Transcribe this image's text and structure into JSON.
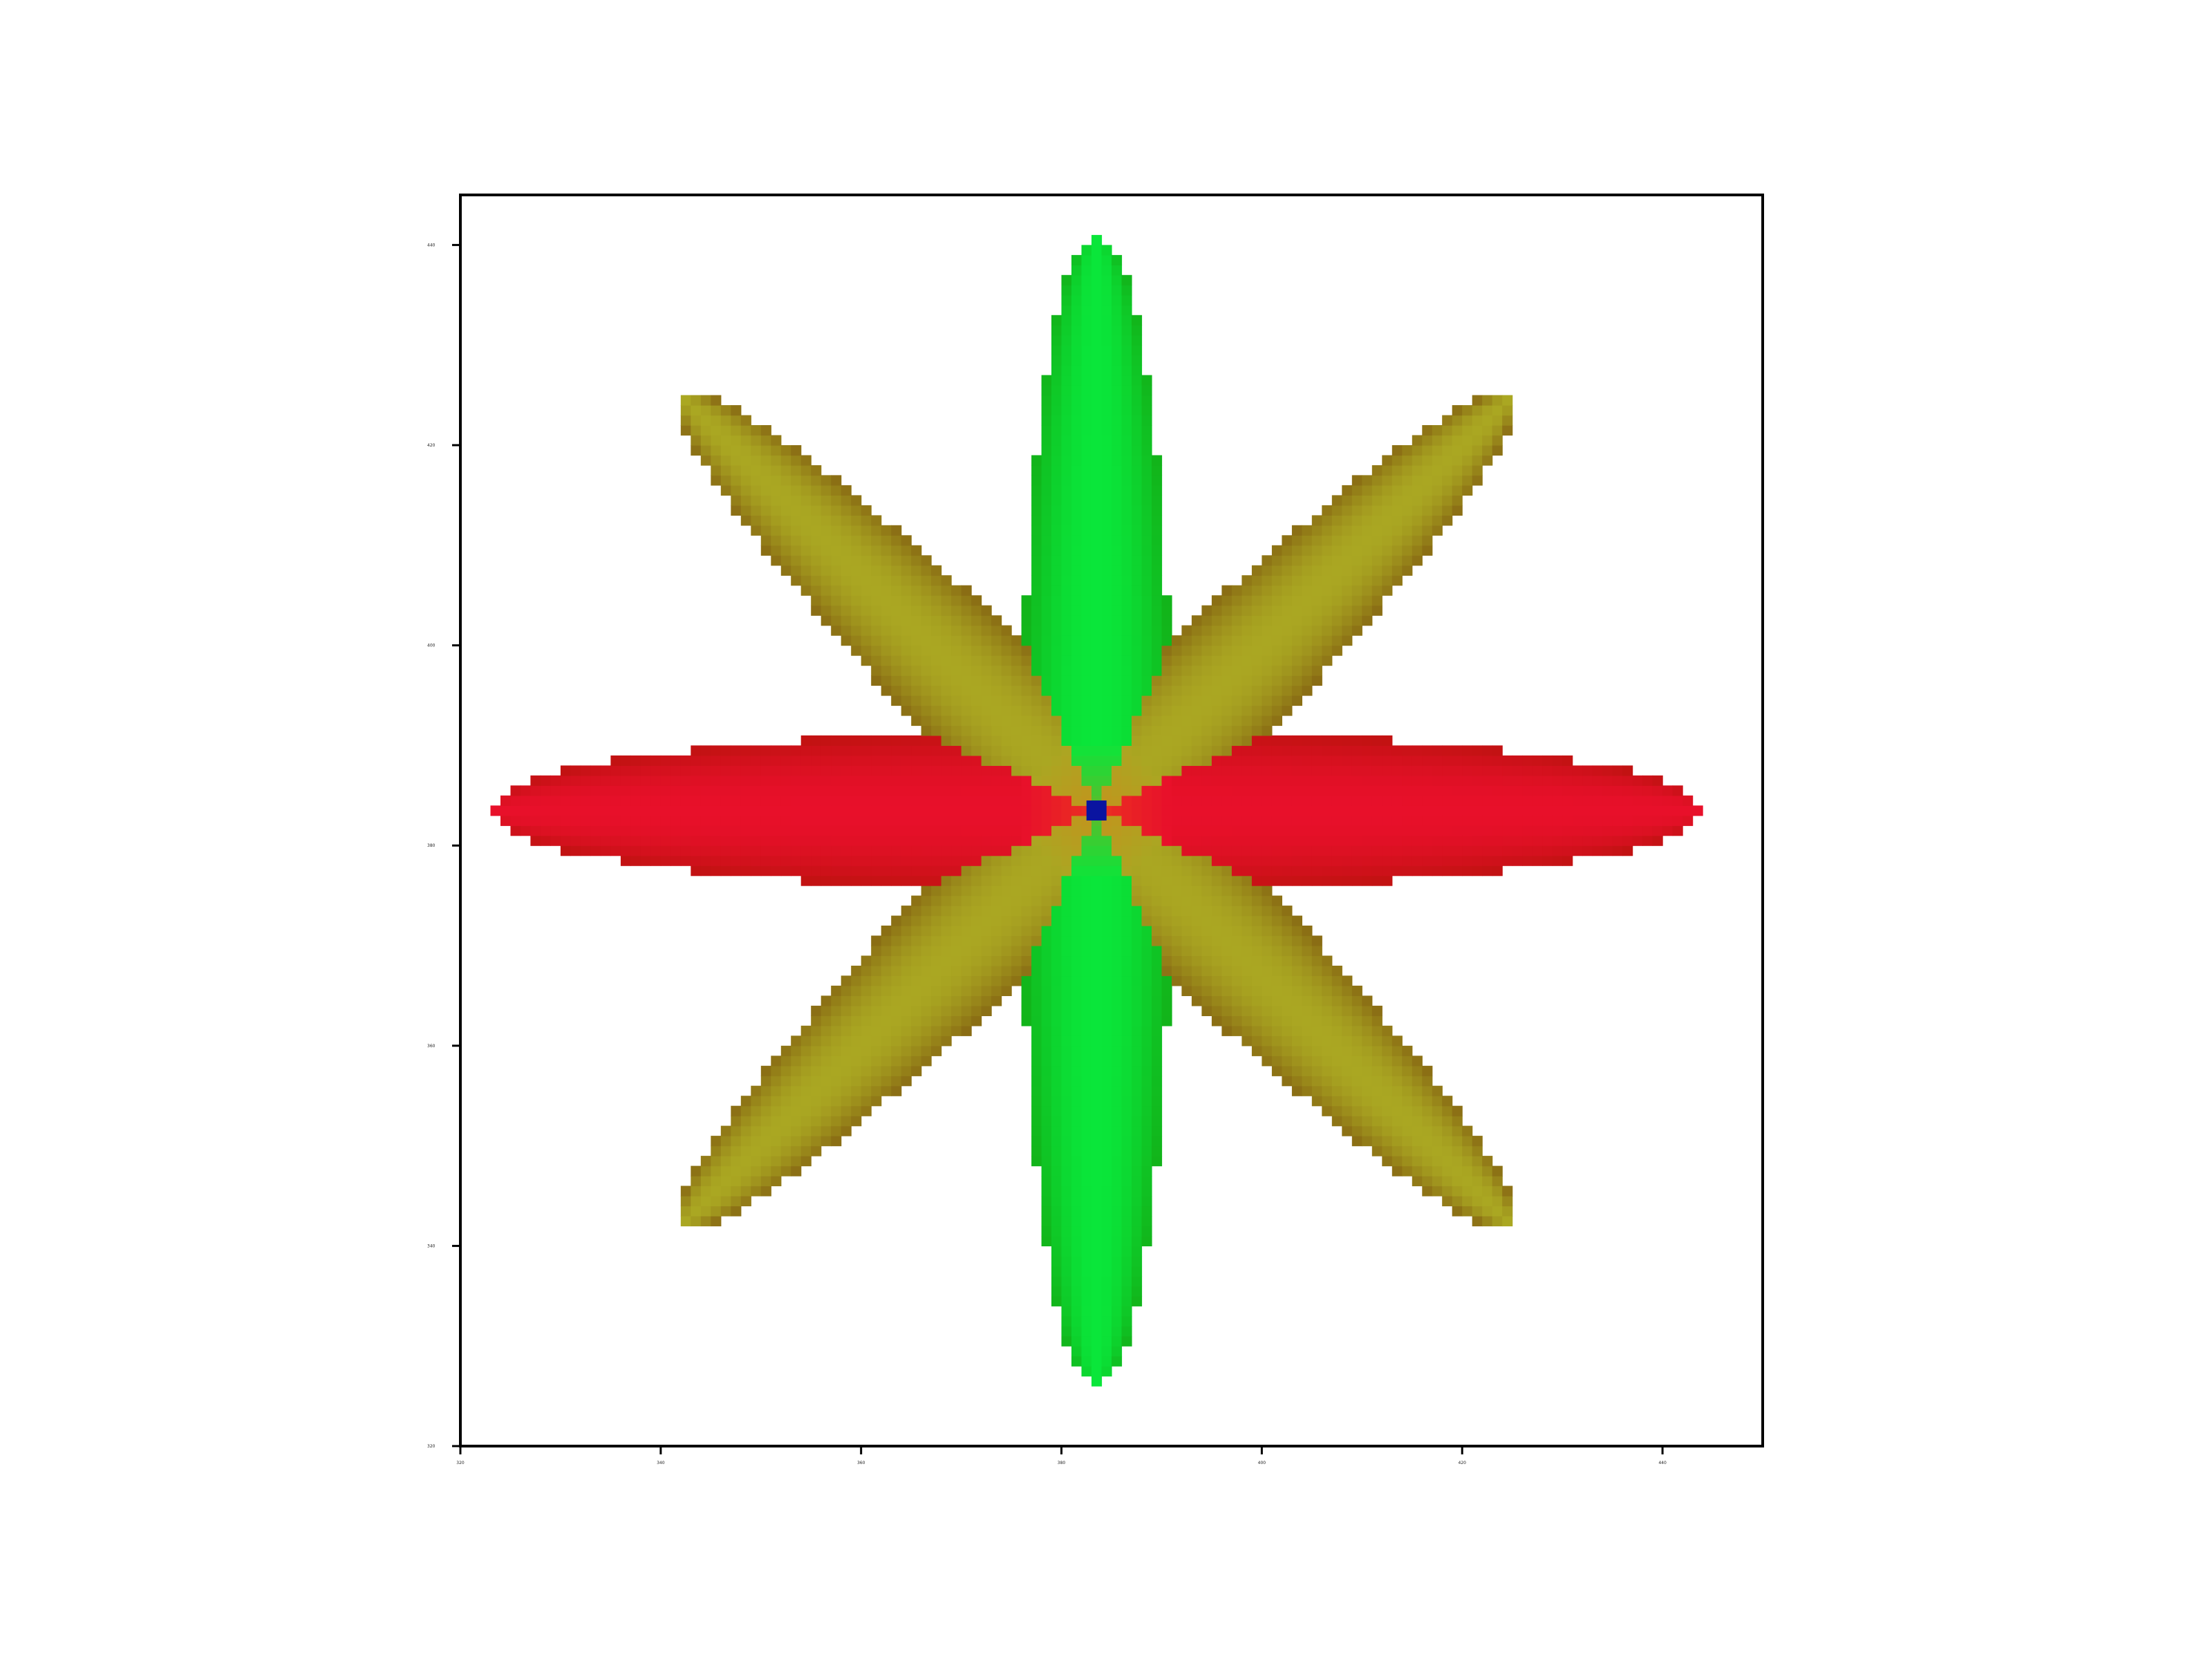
{
  "chart_data": {
    "type": "heatmap",
    "title": "",
    "xlabel": "",
    "ylabel": "",
    "xlim": [
      320,
      450
    ],
    "ylim": [
      320,
      445
    ],
    "x_ticks": [
      320,
      340,
      360,
      380,
      400,
      420,
      440
    ],
    "y_ticks": [
      320,
      340,
      360,
      380,
      400,
      420,
      440
    ],
    "x_tick_labels": [
      "320",
      "340",
      "360",
      "380",
      "400",
      "420",
      "440"
    ],
    "y_tick_labels": [
      "320",
      "340",
      "360",
      "380",
      "400",
      "420",
      "440"
    ],
    "grid": false,
    "center": [
      383.5,
      383.5
    ],
    "cell_size": 1,
    "petals": [
      {
        "angle_deg": 0,
        "length": 60,
        "half_width": 7.5,
        "color": "#e8102a",
        "edge_color": "#c21212"
      },
      {
        "angle_deg": 180,
        "length": 60,
        "half_width": 7.5,
        "color": "#e8102a",
        "edge_color": "#c21212"
      },
      {
        "angle_deg": 90,
        "length": 57,
        "half_width": 7.0,
        "color": "#0ae63a",
        "edge_color": "#12b41a"
      },
      {
        "angle_deg": 270,
        "length": 57,
        "half_width": 7.0,
        "color": "#0ae63a",
        "edge_color": "#12b41a"
      },
      {
        "angle_deg": 45,
        "length": 58,
        "half_width": 6.5,
        "color": "#aaa722",
        "edge_color": "#8a6d14"
      },
      {
        "angle_deg": 135,
        "length": 58,
        "half_width": 6.5,
        "color": "#aaa722",
        "edge_color": "#8a6d14"
      },
      {
        "angle_deg": 225,
        "length": 58,
        "half_width": 6.5,
        "color": "#aaa722",
        "edge_color": "#8a6d14"
      },
      {
        "angle_deg": 315,
        "length": 58,
        "half_width": 6.5,
        "color": "#aaa722",
        "edge_color": "#8a6d14"
      }
    ],
    "center_color": "#0a14a0",
    "background_color": "#ffffff"
  }
}
